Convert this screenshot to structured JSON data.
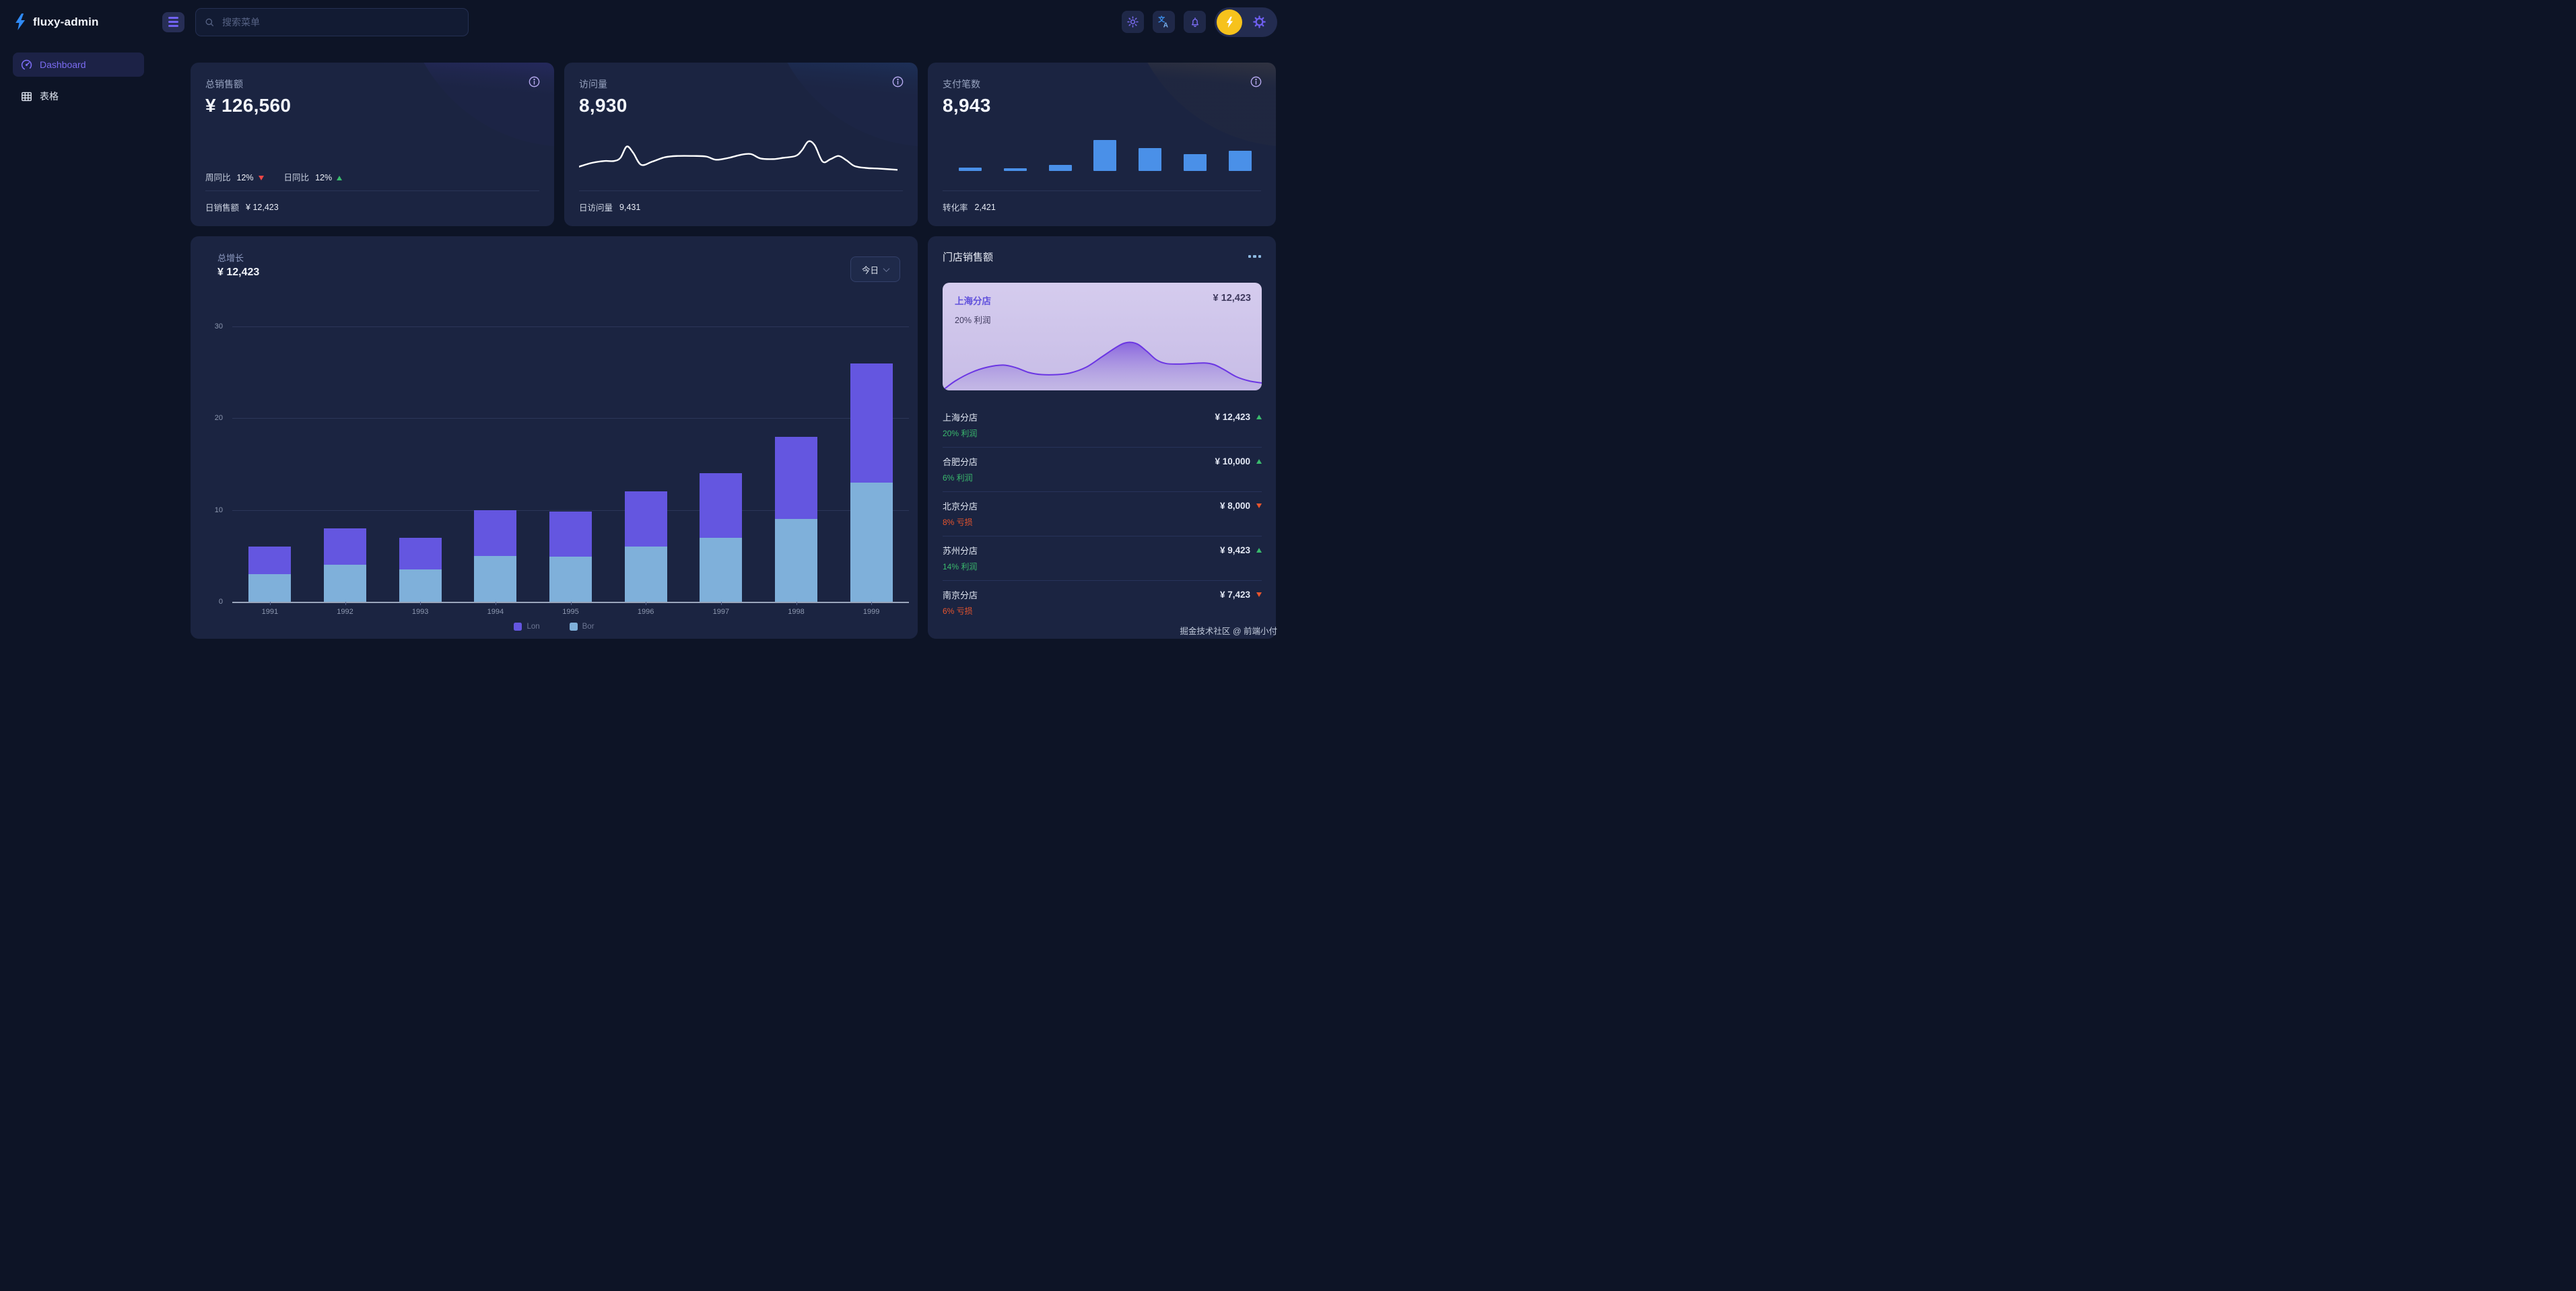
{
  "brand": {
    "name": "fluxy-admin"
  },
  "topbar": {
    "search_placeholder": "搜索菜单"
  },
  "sidebar": {
    "items": [
      {
        "label": "Dashboard",
        "icon": "gauge-icon",
        "active": true
      },
      {
        "label": "表格",
        "icon": "table-icon",
        "active": false
      }
    ]
  },
  "stat_cards": [
    {
      "title": "总销售额",
      "value": "¥ 126,560",
      "metrics": [
        {
          "label": "周同比",
          "value": "12%",
          "trend": "down"
        },
        {
          "label": "日同比",
          "value": "12%",
          "trend": "up"
        }
      ],
      "footer_label": "日销售额",
      "footer_value": "¥ 12,423"
    },
    {
      "title": "访问量",
      "value": "8,930",
      "footer_label": "日访问量",
      "footer_value": "9,431",
      "sparkline": [
        [
          0,
          27
        ],
        [
          4,
          24
        ],
        [
          8,
          22.5
        ],
        [
          11,
          22.5
        ],
        [
          13,
          20
        ],
        [
          15,
          11
        ],
        [
          17,
          16
        ],
        [
          19.5,
          25.5
        ],
        [
          23,
          23
        ],
        [
          27,
          19.5
        ],
        [
          31,
          18.5
        ],
        [
          36,
          18.5
        ],
        [
          40,
          19
        ],
        [
          43,
          21.5
        ],
        [
          47,
          20
        ],
        [
          51,
          17.5
        ],
        [
          54,
          17
        ],
        [
          57,
          20.5
        ],
        [
          61,
          21
        ],
        [
          64,
          20
        ],
        [
          68,
          18.5
        ],
        [
          70,
          14
        ],
        [
          72,
          7
        ],
        [
          74,
          10
        ],
        [
          76.5,
          23
        ],
        [
          79,
          21
        ],
        [
          81.5,
          18.5
        ],
        [
          84,
          22
        ],
        [
          86.5,
          26.5
        ],
        [
          90,
          28
        ],
        [
          94,
          28.5
        ],
        [
          100,
          29.5
        ]
      ]
    },
    {
      "title": "支付笔数",
      "value": "8,943",
      "footer_label": "转化率",
      "footer_value": "2,421",
      "bars": [
        11,
        9,
        19,
        92,
        69,
        51,
        61
      ],
      "bar_color": "#4a90e8"
    }
  ],
  "growth_chart": {
    "title": "总增长",
    "value": "¥ 12,423",
    "range_label": "今日",
    "chart_data": {
      "type": "bar",
      "stacked": true,
      "categories": [
        "1991",
        "1992",
        "1993",
        "1994",
        "1995",
        "1996",
        "1997",
        "1998",
        "1999"
      ],
      "series": [
        {
          "name": "Bor",
          "color": "#7fb0da",
          "values": [
            3,
            4,
            3.5,
            5,
            4.9,
            6,
            7,
            9,
            13
          ]
        },
        {
          "name": "Lon",
          "color": "#6456e0",
          "values": [
            3,
            4,
            3.5,
            5,
            4.9,
            6,
            7,
            9,
            13
          ]
        }
      ],
      "legend": [
        "Lon",
        "Bor"
      ],
      "ylim": [
        0,
        30
      ],
      "yticks": [
        0,
        10,
        20,
        30
      ],
      "grid": true,
      "legend_position": "bottom"
    }
  },
  "store_sales": {
    "title": "门店销售额",
    "highlight": {
      "name": "上海分店",
      "value": "¥ 12,423",
      "profit": "20% 利润",
      "area": [
        [
          0,
          60
        ],
        [
          4,
          51
        ],
        [
          9,
          43
        ],
        [
          14,
          38
        ],
        [
          19,
          36
        ],
        [
          23,
          38.5
        ],
        [
          27,
          43
        ],
        [
          31,
          45
        ],
        [
          36,
          45
        ],
        [
          40,
          43.5
        ],
        [
          45,
          38
        ],
        [
          50,
          28
        ],
        [
          55,
          18
        ],
        [
          58,
          14.5
        ],
        [
          61,
          16
        ],
        [
          64,
          23
        ],
        [
          67,
          31
        ],
        [
          70,
          34.5
        ],
        [
          74,
          35
        ],
        [
          78,
          34.5
        ],
        [
          82,
          34
        ],
        [
          85,
          35.5
        ],
        [
          88,
          40
        ],
        [
          92,
          47
        ],
        [
          96,
          51
        ],
        [
          100,
          53
        ]
      ]
    },
    "items": [
      {
        "name": "上海分店",
        "sub": "20% 利润",
        "value": "¥ 12,423",
        "trend": "up"
      },
      {
        "name": "合肥分店",
        "sub": "6% 利润",
        "value": "¥ 10,000",
        "trend": "up"
      },
      {
        "name": "北京分店",
        "sub": "8% 亏损",
        "value": "¥ 8,000",
        "trend": "down"
      },
      {
        "name": "苏州分店",
        "sub": "14% 利润",
        "value": "¥ 9,423",
        "trend": "up"
      },
      {
        "name": "南京分店",
        "sub": "6% 亏损",
        "value": "¥ 7,423",
        "trend": "down"
      }
    ]
  },
  "footer": {
    "credit": "掘金技术社区 @ 前端小付"
  },
  "colors": {
    "up_green": "#3aba6d",
    "down_red": "#ef4646",
    "down_orange": "#e8552d",
    "accent_purple": "#6f5ff0",
    "spark_line": "#ffffff",
    "area_stroke": "#6b36e3",
    "highlight_name": "#6050dc",
    "mini_bar_blue": "#4a90e8"
  }
}
